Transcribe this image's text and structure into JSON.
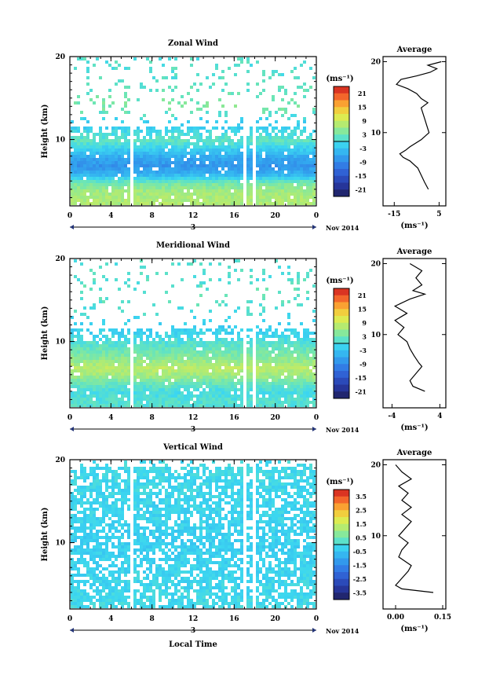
{
  "chart_data": [
    {
      "type": "heatmap",
      "title": "Zonal Wind",
      "ylabel": "Height (km)",
      "ylim": [
        2,
        20
      ],
      "yticks": [
        "20",
        "10"
      ],
      "xticks": [
        "0",
        "4",
        "8",
        "12",
        "16",
        "20",
        "0"
      ],
      "xlim": [
        0,
        24
      ],
      "date_label": "3",
      "date_suffix": "Nov 2014",
      "colorbar": {
        "unit": "(ms⁻¹)",
        "ticks": [
          "21",
          "15",
          "9",
          "3",
          "-3",
          "-9",
          "-15",
          "-21"
        ],
        "range": [
          -24,
          24
        ]
      },
      "gaps": [
        [
          5.8,
          6.1
        ],
        [
          16.8,
          17.1
        ],
        [
          17.6,
          17.9
        ]
      ],
      "profile_by_height": [
        {
          "h": 3,
          "v": 7
        },
        {
          "h": 4,
          "v": 6
        },
        {
          "h": 5,
          "v": 3
        },
        {
          "h": 6,
          "v": -5
        },
        {
          "h": 7,
          "v": -8
        },
        {
          "h": 8,
          "v": -6
        },
        {
          "h": 9,
          "v": -2
        },
        {
          "h": 10,
          "v": 2
        },
        {
          "h": 11,
          "v": 0
        },
        {
          "h": 12,
          "v": -3
        },
        {
          "h": 14,
          "v": 4
        },
        {
          "h": 16,
          "v": 2
        },
        {
          "h": 18,
          "v": 1
        },
        {
          "h": 19,
          "v": 1
        }
      ],
      "average": {
        "title": "Average",
        "unit": "(ms⁻¹)",
        "xticks": [
          "-15",
          "5"
        ],
        "xlim": [
          -20,
          8
        ],
        "ylim": [
          0,
          20
        ],
        "yticks": [
          "20",
          "10"
        ],
        "points": [
          [
            0.2,
            2
          ],
          [
            -1.5,
            3
          ],
          [
            -3,
            4
          ],
          [
            -4.5,
            5
          ],
          [
            -8,
            6
          ],
          [
            -11,
            6.5
          ],
          [
            -12.5,
            7
          ],
          [
            -10,
            7.5
          ],
          [
            -8,
            8
          ],
          [
            -3,
            9
          ],
          [
            0.5,
            10
          ],
          [
            -0.5,
            11
          ],
          [
            -1.5,
            12
          ],
          [
            -2.5,
            13
          ],
          [
            -3,
            13.5
          ],
          [
            0,
            14.2
          ],
          [
            -3,
            14.8
          ],
          [
            -5,
            15.5
          ],
          [
            -9,
            16.2
          ],
          [
            -14,
            16.8
          ],
          [
            -12,
            17.5
          ],
          [
            -5,
            18
          ],
          [
            1,
            18.5
          ],
          [
            4,
            19
          ],
          [
            0,
            19.5
          ],
          [
            6,
            20
          ]
        ]
      }
    },
    {
      "type": "heatmap",
      "title": "Meridional Wind",
      "ylabel": "Height (km)",
      "ylim": [
        2,
        20
      ],
      "yticks": [
        "20",
        "10"
      ],
      "xticks": [
        "0",
        "4",
        "8",
        "12",
        "16",
        "20",
        "0"
      ],
      "xlim": [
        0,
        24
      ],
      "date_label": "3",
      "date_suffix": "Nov 2014",
      "colorbar": {
        "unit": "(ms⁻¹)",
        "ticks": [
          "21",
          "15",
          "9",
          "3",
          "-3",
          "-9",
          "-15",
          "-21"
        ],
        "range": [
          -24,
          24
        ]
      },
      "gaps": [
        [
          5.8,
          6.1
        ],
        [
          16.8,
          17.1
        ],
        [
          17.6,
          17.9
        ]
      ],
      "profile_by_height": [
        {
          "h": 3,
          "v": 1
        },
        {
          "h": 4,
          "v": 0
        },
        {
          "h": 5,
          "v": 2
        },
        {
          "h": 6,
          "v": 6
        },
        {
          "h": 7,
          "v": 8
        },
        {
          "h": 8,
          "v": 5
        },
        {
          "h": 9,
          "v": 3
        },
        {
          "h": 10,
          "v": 1
        },
        {
          "h": 11,
          "v": -1
        },
        {
          "h": 12,
          "v": -2
        },
        {
          "h": 14,
          "v": 1
        },
        {
          "h": 16,
          "v": 2
        },
        {
          "h": 18,
          "v": 1
        },
        {
          "h": 19,
          "v": 1
        }
      ],
      "average": {
        "title": "Average",
        "unit": "(ms⁻¹)",
        "xticks": [
          "-4",
          "4"
        ],
        "xlim": [
          -5.5,
          5
        ],
        "ylim": [
          0,
          20
        ],
        "yticks": [
          "20",
          "10"
        ],
        "points": [
          [
            1.5,
            2
          ],
          [
            -0.5,
            2.7
          ],
          [
            -1,
            3.5
          ],
          [
            0,
            4.5
          ],
          [
            1,
            5.5
          ],
          [
            0.5,
            6
          ],
          [
            -0.3,
            7
          ],
          [
            -1,
            8
          ],
          [
            -1.5,
            9
          ],
          [
            -3,
            10
          ],
          [
            -2,
            11
          ],
          [
            -3.5,
            12
          ],
          [
            -1.5,
            13
          ],
          [
            -3.5,
            14
          ],
          [
            -1,
            15
          ],
          [
            1.5,
            15.7
          ],
          [
            -0.5,
            16.2
          ],
          [
            1,
            17
          ],
          [
            0,
            18
          ],
          [
            1,
            19
          ],
          [
            -1,
            20
          ]
        ]
      }
    },
    {
      "type": "heatmap",
      "title": "Vertical Wind",
      "ylabel": "Height (km)",
      "xlabel": "Local Time",
      "ylim": [
        2,
        20
      ],
      "yticks": [
        "20",
        "10"
      ],
      "xticks": [
        "0",
        "4",
        "8",
        "12",
        "16",
        "20",
        "0"
      ],
      "xlim": [
        0,
        24
      ],
      "date_label": "3",
      "date_suffix": "Nov 2014",
      "colorbar": {
        "unit": "(ms⁻¹)",
        "ticks": [
          "3.5",
          "2.5",
          "1.5",
          "0.5",
          "-0.5",
          "-1.5",
          "-2.5",
          "-3.5"
        ],
        "range": [
          -4,
          4
        ]
      },
      "gaps": [
        [
          5.8,
          6.1
        ],
        [
          16.8,
          17.1
        ],
        [
          17.6,
          17.9
        ]
      ],
      "profile_by_height": [
        {
          "h": 3,
          "v": -0.1
        },
        {
          "h": 6,
          "v": -0.2
        },
        {
          "h": 10,
          "v": -0.3
        },
        {
          "h": 14,
          "v": -0.2
        },
        {
          "h": 19,
          "v": -0.1
        }
      ],
      "average": {
        "title": "Average",
        "unit": "(ms⁻¹)",
        "xticks": [
          "0.00",
          "0.15"
        ],
        "xlim": [
          -0.04,
          0.16
        ],
        "ylim": [
          0,
          20
        ],
        "yticks": [
          "20",
          "10"
        ],
        "points": [
          [
            0.12,
            2
          ],
          [
            0.02,
            2.5
          ],
          [
            0.0,
            3
          ],
          [
            0.02,
            4
          ],
          [
            0.04,
            5
          ],
          [
            0.05,
            5.8
          ],
          [
            0.03,
            6.4
          ],
          [
            0.01,
            7
          ],
          [
            0.02,
            8
          ],
          [
            0.04,
            9
          ],
          [
            0.01,
            10
          ],
          [
            0.03,
            11
          ],
          [
            0.05,
            12
          ],
          [
            0.02,
            13
          ],
          [
            0.05,
            14
          ],
          [
            0.02,
            15
          ],
          [
            0.04,
            16
          ],
          [
            0.01,
            17
          ],
          [
            0.05,
            18
          ],
          [
            0.02,
            19
          ],
          [
            0.0,
            20
          ]
        ]
      }
    }
  ]
}
